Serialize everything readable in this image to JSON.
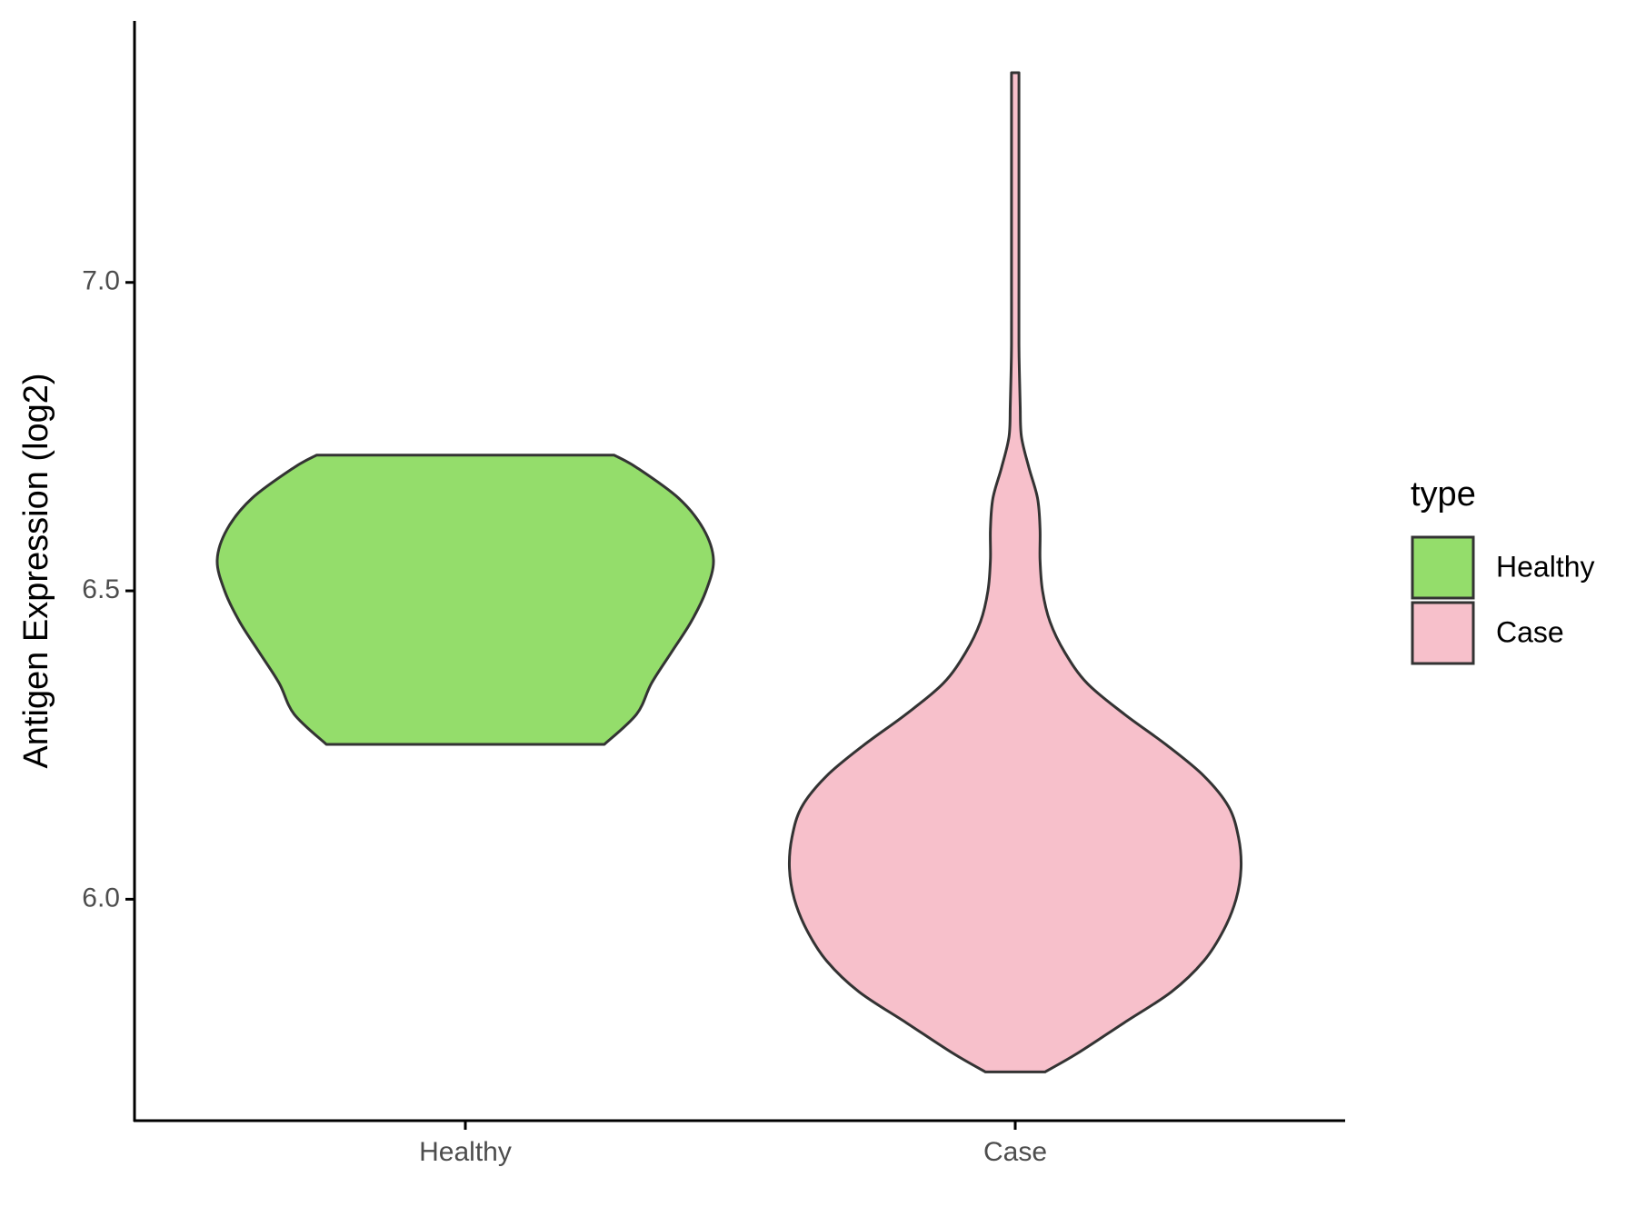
{
  "chart_data": {
    "type": "violin",
    "y_label": "Antigen Expression (log2)",
    "categories": [
      "Healthy",
      "Case"
    ],
    "ylim": [
      5.641,
      7.424
    ],
    "yticks": [
      {
        "value": 6,
        "label": "6.0"
      },
      {
        "value": 6.5,
        "label": "6.5"
      },
      {
        "value": 7,
        "label": "7.0"
      }
    ],
    "legend_title": "type",
    "legend_position": "right",
    "series": [
      {
        "name": "Healthy",
        "color": "#94dd6b",
        "y": [
          6.251,
          6.3,
          6.35,
          6.4,
          6.45,
          6.5,
          6.55,
          6.6,
          6.65,
          6.7,
          6.72
        ],
        "density": [
          0.56,
          0.69,
          0.75,
          0.83,
          0.91,
          0.97,
          1.0,
          0.96,
          0.86,
          0.69,
          0.6
        ]
      },
      {
        "name": "Case",
        "color": "#f7c0cb",
        "y": [
          5.72,
          5.75,
          5.8,
          5.85,
          5.9,
          5.95,
          6.0,
          6.05,
          6.1,
          6.15,
          6.2,
          6.25,
          6.3,
          6.35,
          6.4,
          6.45,
          6.5,
          6.55,
          6.6,
          6.65,
          6.7,
          6.75,
          6.8,
          6.85,
          6.9,
          7.0,
          7.1,
          7.2,
          7.3,
          7.34
        ],
        "density": [
          0.12,
          0.25,
          0.44,
          0.63,
          0.76,
          0.84,
          0.89,
          0.91,
          0.9,
          0.86,
          0.76,
          0.61,
          0.44,
          0.29,
          0.2,
          0.14,
          0.11,
          0.1,
          0.1,
          0.09,
          0.055,
          0.025,
          0.02,
          0.017,
          0.015,
          0.015,
          0.015,
          0.015,
          0.015,
          0.015
        ]
      }
    ]
  }
}
